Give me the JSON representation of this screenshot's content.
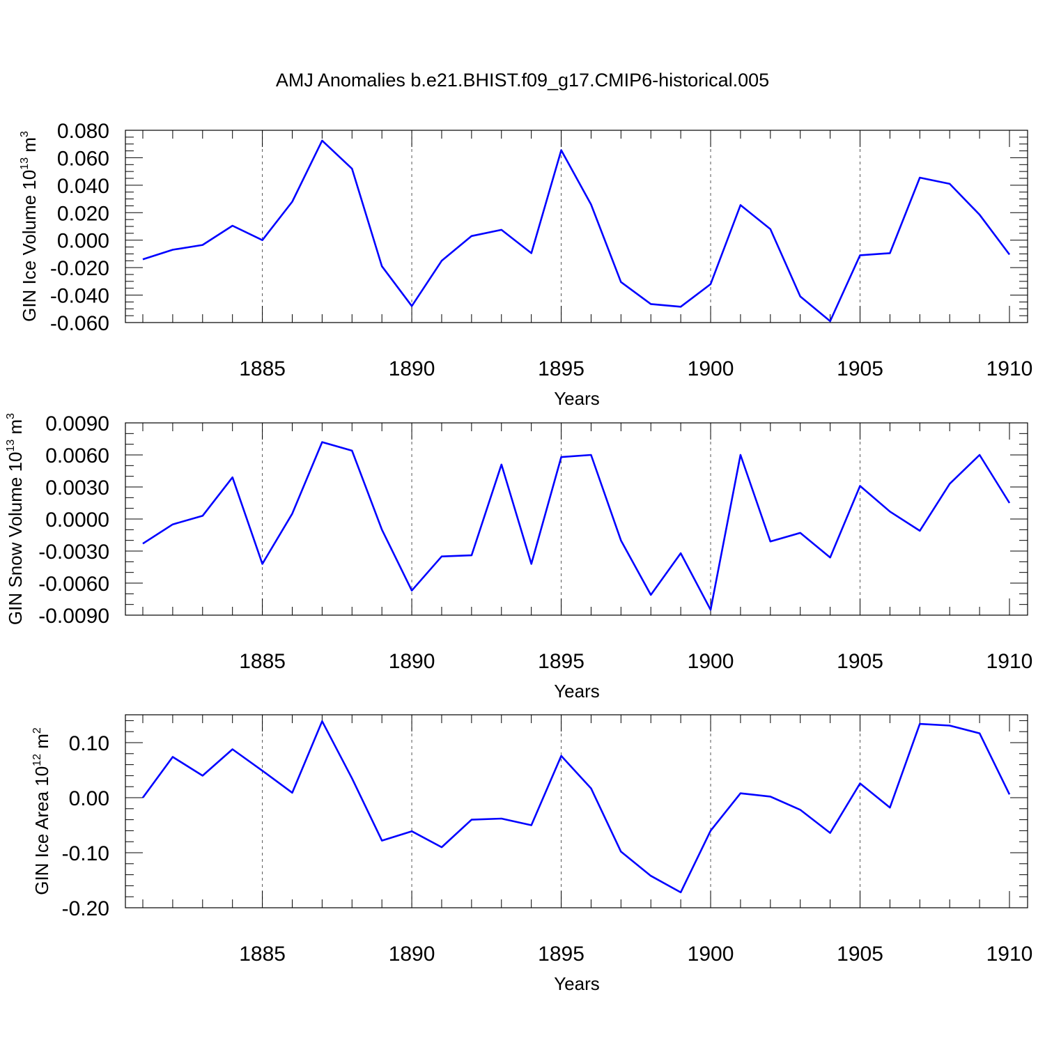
{
  "title": "AMJ Anomalies b.e21.BHIST.f09_g17.CMIP6-historical.005",
  "line_color": "#0000ff",
  "chart_data": [
    {
      "type": "line",
      "ylabel": "GIN Ice Volume 10",
      "ylabel_exp": "13",
      "ylabel_unit": "m",
      "ylabel_unit_exp": "3",
      "xlabel": "Years",
      "xlim": [
        1881,
        1910
      ],
      "ylim": [
        -0.06,
        0.08
      ],
      "yticks": [
        -0.06,
        -0.04,
        -0.02,
        0.0,
        0.02,
        0.04,
        0.06,
        0.08
      ],
      "ytick_labels": [
        "-0.060",
        "-0.040",
        "-0.020",
        "0.000",
        "0.020",
        "0.040",
        "0.060",
        "0.080"
      ],
      "yminor_step": 0.005,
      "xticks": [
        1885,
        1890,
        1895,
        1900,
        1905,
        1910
      ],
      "xtick_labels": [
        "1885",
        "1890",
        "1895",
        "1900",
        "1905",
        "1910"
      ],
      "grid": "vertical dashed at major x ticks",
      "x": [
        1881,
        1882,
        1883,
        1884,
        1885,
        1886,
        1887,
        1888,
        1889,
        1890,
        1891,
        1892,
        1893,
        1894,
        1895,
        1896,
        1897,
        1898,
        1899,
        1900,
        1901,
        1902,
        1903,
        1904,
        1905,
        1906,
        1907,
        1908,
        1909,
        1910
      ],
      "y": [
        -0.014,
        -0.007,
        -0.0035,
        0.0105,
        0.0,
        0.028,
        0.0725,
        0.052,
        -0.019,
        -0.048,
        -0.015,
        0.003,
        0.0075,
        -0.0095,
        0.0655,
        0.026,
        -0.0305,
        -0.0465,
        -0.0485,
        -0.032,
        0.0255,
        0.008,
        -0.041,
        -0.059,
        -0.011,
        -0.0095,
        0.0455,
        0.041,
        0.0185,
        -0.0105
      ]
    },
    {
      "type": "line",
      "ylabel": "GIN Snow Volume 10",
      "ylabel_exp": "13",
      "ylabel_unit": "m",
      "ylabel_unit_exp": "3",
      "xlabel": "Years",
      "xlim": [
        1881,
        1910
      ],
      "ylim": [
        -0.009,
        0.009
      ],
      "yticks": [
        -0.009,
        -0.006,
        -0.003,
        0.0,
        0.003,
        0.006,
        0.009
      ],
      "ytick_labels": [
        "-0.0090",
        "-0.0060",
        "-0.0030",
        "0.0000",
        "0.0030",
        "0.0060",
        "0.0090"
      ],
      "yminor_step": 0.001,
      "xticks": [
        1885,
        1890,
        1895,
        1900,
        1905,
        1910
      ],
      "xtick_labels": [
        "1885",
        "1890",
        "1895",
        "1900",
        "1905",
        "1910"
      ],
      "grid": "vertical dashed at major x ticks",
      "x": [
        1881,
        1882,
        1883,
        1884,
        1885,
        1886,
        1887,
        1888,
        1889,
        1890,
        1891,
        1892,
        1893,
        1894,
        1895,
        1896,
        1897,
        1898,
        1899,
        1900,
        1901,
        1902,
        1903,
        1904,
        1905,
        1906,
        1907,
        1908,
        1909,
        1910
      ],
      "y": [
        -0.0023,
        -0.0005,
        0.0003,
        0.0039,
        -0.0042,
        0.0005,
        0.0072,
        0.0064,
        -0.001,
        -0.0067,
        -0.0035,
        -0.0034,
        0.0051,
        -0.0042,
        0.0058,
        0.006,
        -0.002,
        -0.0071,
        -0.0032,
        -0.0085,
        0.006,
        -0.0021,
        -0.0013,
        -0.0036,
        0.0031,
        0.0007,
        -0.0011,
        0.0033,
        0.006,
        0.0015
      ]
    },
    {
      "type": "line",
      "ylabel": "GIN Ice Area 10",
      "ylabel_exp": "12",
      "ylabel_unit": "m",
      "ylabel_unit_exp": "2",
      "xlabel": "Years",
      "xlim": [
        1881,
        1910
      ],
      "ylim": [
        -0.2,
        0.15
      ],
      "yticks": [
        -0.2,
        -0.1,
        0.0,
        0.1
      ],
      "ytick_labels": [
        "-0.20",
        "-0.10",
        "0.00",
        "0.10"
      ],
      "yminor_step": 0.02,
      "xticks": [
        1885,
        1890,
        1895,
        1900,
        1905,
        1910
      ],
      "xtick_labels": [
        "1885",
        "1890",
        "1895",
        "1900",
        "1905",
        "1910"
      ],
      "grid": "vertical dashed at major x ticks",
      "x": [
        1881,
        1882,
        1883,
        1884,
        1885,
        1886,
        1887,
        1888,
        1889,
        1890,
        1891,
        1892,
        1893,
        1894,
        1895,
        1896,
        1897,
        1898,
        1899,
        1900,
        1901,
        1902,
        1903,
        1904,
        1905,
        1906,
        1907,
        1908,
        1909,
        1910
      ],
      "y": [
        0.0,
        0.074,
        0.04,
        0.088,
        0.049,
        0.009,
        0.139,
        0.035,
        -0.078,
        -0.061,
        -0.09,
        -0.04,
        -0.038,
        -0.05,
        0.076,
        0.017,
        -0.098,
        -0.142,
        -0.172,
        -0.06,
        0.008,
        0.002,
        -0.022,
        -0.064,
        0.026,
        -0.018,
        0.134,
        0.131,
        0.117,
        0.006
      ]
    }
  ]
}
